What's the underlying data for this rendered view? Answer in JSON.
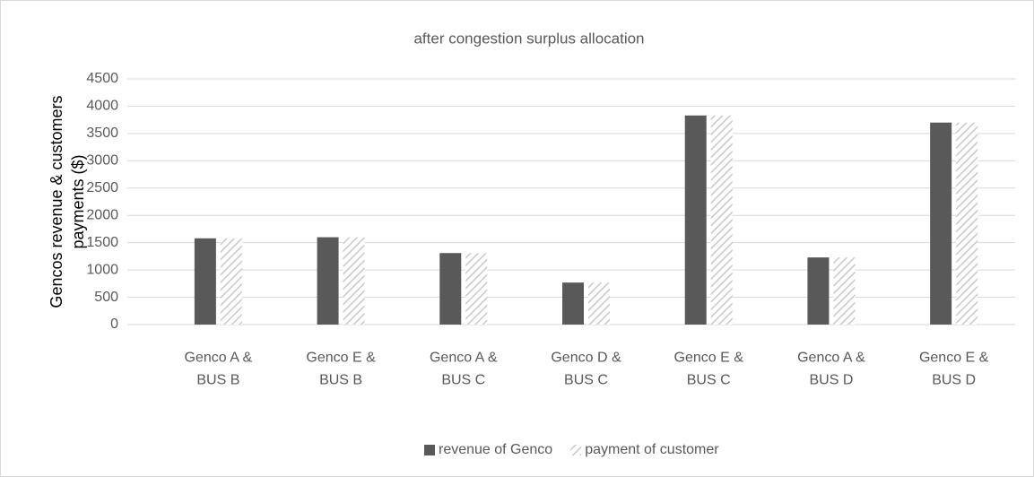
{
  "chart_data": {
    "type": "bar",
    "title": "after congestion surplus allocation",
    "ylabel": "Gencos revenue & customers payments ($)",
    "categories": [
      "Genco A & BUS B",
      "Genco E & BUS B",
      "Genco A & BUS C",
      "Genco D & BUS C",
      "Genco E & BUS C",
      "Genco A & BUS D",
      "Genco E & BUS D"
    ],
    "series": [
      {
        "name": "revenue of Genco",
        "color": "#595959",
        "values": [
          1580,
          1600,
          1310,
          770,
          3830,
          1230,
          3700
        ]
      },
      {
        "name": "payment of customer",
        "color": "#d0d0d0",
        "hatch": true,
        "values": [
          1580,
          1600,
          1310,
          770,
          3830,
          1230,
          3700
        ]
      }
    ],
    "ylim": [
      0,
      4500
    ],
    "yticks": [
      0,
      500,
      1000,
      1500,
      2000,
      2500,
      3000,
      3500,
      4000,
      4500
    ],
    "grid": true,
    "legend": "bottom"
  }
}
